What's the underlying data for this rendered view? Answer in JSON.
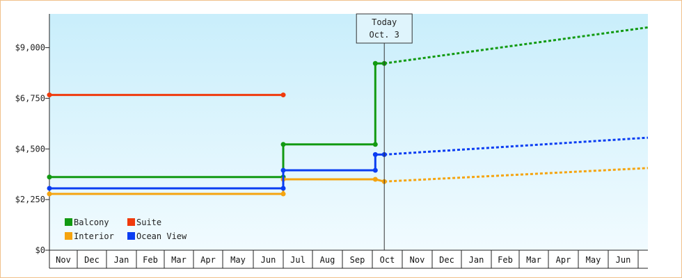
{
  "chart_data": {
    "type": "line",
    "title": "",
    "xlabel": "",
    "ylabel": "",
    "months": [
      "Nov",
      "Dec",
      "Jan",
      "Feb",
      "Mar",
      "Apr",
      "May",
      "Jun",
      "Jul",
      "Aug",
      "Sep",
      "Oct",
      "Nov",
      "Dec",
      "Jan",
      "Feb",
      "Mar",
      "Apr",
      "May",
      "Jun"
    ],
    "y_ticks": [
      {
        "value": 0,
        "label": "$0"
      },
      {
        "value": 2250,
        "label": "$2,250"
      },
      {
        "value": 4500,
        "label": "$4,500"
      },
      {
        "value": 6750,
        "label": "$6,750"
      },
      {
        "value": 9000,
        "label": "$9,000"
      }
    ],
    "ylim": [
      0,
      10500
    ],
    "today": {
      "line1": "Today",
      "line2": "Oct. 3",
      "x": 11.4
    },
    "grid": false,
    "legend_placement": "bottom-left",
    "series": [
      {
        "name": "Balcony",
        "color": "#129a12",
        "points": [
          [
            0,
            3250
          ],
          [
            8,
            3250
          ],
          [
            8,
            4700
          ],
          [
            11.1,
            4700
          ],
          [
            11.1,
            8300
          ],
          [
            11.4,
            8300
          ]
        ],
        "forecast": [
          [
            11.4,
            8300
          ],
          [
            21,
            9900
          ]
        ]
      },
      {
        "name": "Suite",
        "color": "#f03a0c",
        "points": [
          [
            0,
            6900
          ],
          [
            8,
            6900
          ]
        ],
        "forecast": []
      },
      {
        "name": "Interior",
        "color": "#f5a40f",
        "points": [
          [
            0,
            2500
          ],
          [
            8,
            2500
          ],
          [
            8,
            3150
          ],
          [
            11.1,
            3150
          ],
          [
            11.4,
            3050
          ]
        ],
        "forecast": [
          [
            11.4,
            3050
          ],
          [
            21,
            3650
          ]
        ]
      },
      {
        "name": "Ocean View",
        "color": "#0a3df2",
        "points": [
          [
            0,
            2750
          ],
          [
            8,
            2750
          ],
          [
            8,
            3550
          ],
          [
            11.1,
            3550
          ],
          [
            11.1,
            4250
          ],
          [
            11.4,
            4250
          ]
        ],
        "forecast": [
          [
            11.4,
            4250
          ],
          [
            21,
            5000
          ]
        ]
      }
    ]
  }
}
